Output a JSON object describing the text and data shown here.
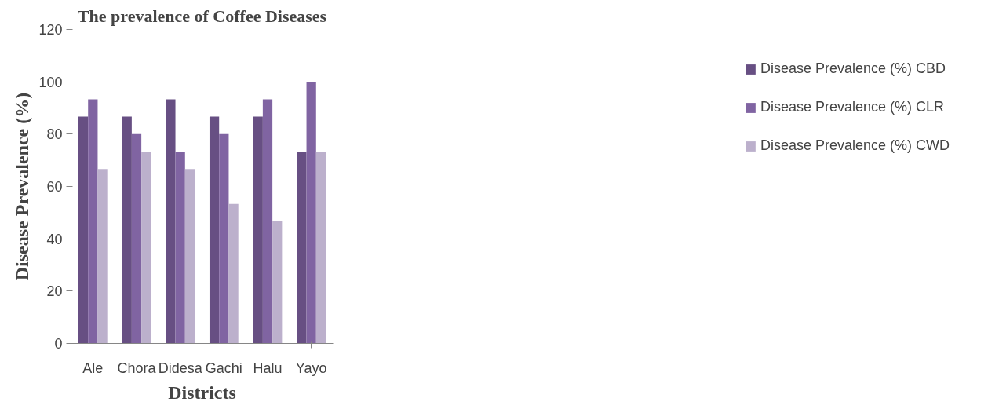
{
  "chart_data": {
    "type": "bar",
    "title": "The prevalence of Coffee Diseases",
    "xlabel": "Districts",
    "ylabel": "Disease Prevalence (%)",
    "categories": [
      "Ale",
      "Chora",
      "Didesa",
      "Gachi",
      "Halu",
      "Yayo"
    ],
    "series": [
      {
        "name": "Disease Prevalence (%) CBD",
        "color": "#674f83",
        "values": [
          86.7,
          86.7,
          93.3,
          86.7,
          86.7,
          73.3
        ]
      },
      {
        "name": "Disease Prevalence (%) CLR",
        "color": "#8064a2",
        "values": [
          93.3,
          80,
          73.3,
          80,
          93.3,
          100
        ]
      },
      {
        "name": "Disease Prevalence (%) CWD",
        "color": "#bcb0cc",
        "values": [
          66.7,
          73.3,
          66.7,
          53.3,
          46.7,
          73.3
        ]
      }
    ],
    "ylim": [
      0,
      120
    ],
    "yticks": [
      0,
      20,
      40,
      60,
      80,
      100,
      120
    ],
    "grid": false,
    "legend": "right"
  }
}
